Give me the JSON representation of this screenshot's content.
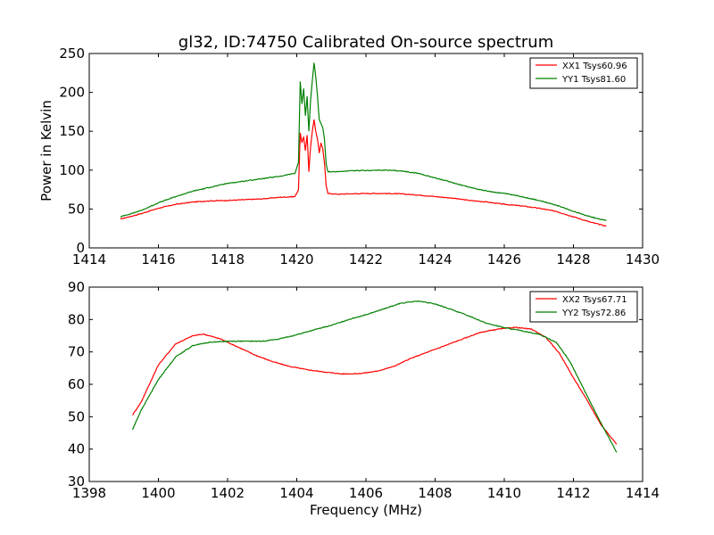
{
  "chart_data": {
    "type": "line",
    "title": "gl32, ID:74750 Calibrated On-source spectrum",
    "panels": [
      {
        "xlabel": "",
        "ylabel": "Power in Kelvin",
        "xlim": [
          1414,
          1430
        ],
        "ylim": [
          0,
          250
        ],
        "xticks": [
          "1414",
          "1416",
          "1418",
          "1420",
          "1422",
          "1424",
          "1426",
          "1428",
          "1430"
        ],
        "yticks": [
          "0",
          "50",
          "100",
          "150",
          "200",
          "250"
        ],
        "legend_position": "top-right",
        "series": [
          {
            "name": "XX1 Tsys60.96",
            "color": "#ff0000",
            "points": [
              [
                1414.9,
                37
              ],
              [
                1415.5,
                44
              ],
              [
                1416,
                51
              ],
              [
                1416.5,
                56
              ],
              [
                1417,
                59
              ],
              [
                1417.5,
                60.5
              ],
              [
                1418,
                61
              ],
              [
                1418.5,
                62
              ],
              [
                1419,
                63
              ],
              [
                1419.5,
                65
              ],
              [
                1419.95,
                66
              ],
              [
                1420.05,
                75
              ],
              [
                1420.1,
                148
              ],
              [
                1420.15,
                135
              ],
              [
                1420.2,
                143
              ],
              [
                1420.25,
                125
              ],
              [
                1420.3,
                145
              ],
              [
                1420.35,
                98
              ],
              [
                1420.4,
                130
              ],
              [
                1420.45,
                150
              ],
              [
                1420.5,
                165
              ],
              [
                1420.55,
                150
              ],
              [
                1420.6,
                140
              ],
              [
                1420.65,
                122
              ],
              [
                1420.7,
                135
              ],
              [
                1420.75,
                128
              ],
              [
                1420.8,
                110
              ],
              [
                1420.85,
                80
              ],
              [
                1420.9,
                70
              ],
              [
                1421.2,
                69
              ],
              [
                1421.5,
                69.5
              ],
              [
                1422,
                70
              ],
              [
                1422.5,
                70
              ],
              [
                1423,
                69.5
              ],
              [
                1423.5,
                68
              ],
              [
                1424,
                66
              ],
              [
                1424.5,
                64
              ],
              [
                1425,
                61
              ],
              [
                1425.5,
                59
              ],
              [
                1426,
                56
              ],
              [
                1426.5,
                54
              ],
              [
                1427,
                51
              ],
              [
                1427.5,
                47
              ],
              [
                1428,
                40
              ],
              [
                1428.5,
                33
              ],
              [
                1428.95,
                28
              ]
            ]
          },
          {
            "name": "YY1 Tsys81.60",
            "color": "#008000",
            "points": [
              [
                1414.9,
                40
              ],
              [
                1415.5,
                48
              ],
              [
                1416,
                58
              ],
              [
                1416.5,
                66
              ],
              [
                1417,
                73
              ],
              [
                1417.5,
                78
              ],
              [
                1418,
                83
              ],
              [
                1418.5,
                86
              ],
              [
                1419,
                89
              ],
              [
                1419.5,
                92
              ],
              [
                1419.95,
                96
              ],
              [
                1420.05,
                110
              ],
              [
                1420.1,
                214
              ],
              [
                1420.15,
                185
              ],
              [
                1420.2,
                205
              ],
              [
                1420.25,
                170
              ],
              [
                1420.3,
                195
              ],
              [
                1420.35,
                150
              ],
              [
                1420.4,
                190
              ],
              [
                1420.45,
                215
              ],
              [
                1420.5,
                238
              ],
              [
                1420.55,
                220
              ],
              [
                1420.6,
                195
              ],
              [
                1420.65,
                165
              ],
              [
                1420.7,
                160
              ],
              [
                1420.75,
                155
              ],
              [
                1420.8,
                140
              ],
              [
                1420.85,
                108
              ],
              [
                1420.9,
                98
              ],
              [
                1421.2,
                98
              ],
              [
                1421.5,
                99
              ],
              [
                1422,
                99.5
              ],
              [
                1422.5,
                100
              ],
              [
                1423,
                99
              ],
              [
                1423.5,
                96
              ],
              [
                1424,
                90
              ],
              [
                1424.5,
                84
              ],
              [
                1425,
                78
              ],
              [
                1425.5,
                73
              ],
              [
                1426,
                70
              ],
              [
                1426.5,
                66
              ],
              [
                1427,
                61
              ],
              [
                1427.5,
                55
              ],
              [
                1428,
                47
              ],
              [
                1428.5,
                40
              ],
              [
                1428.95,
                35
              ]
            ]
          }
        ]
      },
      {
        "xlabel": "Frequency (MHz)",
        "ylabel": "",
        "xlim": [
          1398,
          1414
        ],
        "ylim": [
          30,
          90
        ],
        "xticks": [
          "1398",
          "1400",
          "1402",
          "1404",
          "1406",
          "1408",
          "1410",
          "1412",
          "1414"
        ],
        "yticks": [
          "30",
          "40",
          "50",
          "60",
          "70",
          "80",
          "90"
        ],
        "legend_position": "top-right",
        "series": [
          {
            "name": "XX2 Tsys67.71",
            "color": "#ff0000",
            "points": [
              [
                1399.25,
                50.5
              ],
              [
                1399.5,
                54.5
              ],
              [
                1400,
                66
              ],
              [
                1400.5,
                72.5
              ],
              [
                1401,
                75
              ],
              [
                1401.3,
                75.5
              ],
              [
                1401.8,
                74
              ],
              [
                1402.3,
                71.5
              ],
              [
                1402.8,
                69
              ],
              [
                1403.3,
                67
              ],
              [
                1403.8,
                65.5
              ],
              [
                1404.3,
                64.5
              ],
              [
                1404.8,
                63.8
              ],
              [
                1405.3,
                63.2
              ],
              [
                1405.8,
                63.3
              ],
              [
                1406.3,
                64
              ],
              [
                1406.8,
                65.5
              ],
              [
                1407.3,
                68
              ],
              [
                1407.8,
                70
              ],
              [
                1408.3,
                72
              ],
              [
                1408.8,
                74
              ],
              [
                1409.3,
                76
              ],
              [
                1409.8,
                77
              ],
              [
                1410.3,
                77.6
              ],
              [
                1410.8,
                77
              ],
              [
                1411.2,
                74.5
              ],
              [
                1411.6,
                69.5
              ],
              [
                1412,
                62
              ],
              [
                1412.4,
                55
              ],
              [
                1412.8,
                47.5
              ],
              [
                1413.25,
                41.5
              ]
            ]
          },
          {
            "name": "YY2 Tsys72.86",
            "color": "#008000",
            "points": [
              [
                1399.25,
                46
              ],
              [
                1399.5,
                52
              ],
              [
                1400,
                61.5
              ],
              [
                1400.5,
                68.5
              ],
              [
                1401,
                72
              ],
              [
                1401.5,
                73
              ],
              [
                1402,
                73.3
              ],
              [
                1402.5,
                73.3
              ],
              [
                1403,
                73.3
              ],
              [
                1403.5,
                74
              ],
              [
                1404,
                75.3
              ],
              [
                1404.5,
                76.8
              ],
              [
                1405,
                78.2
              ],
              [
                1405.5,
                80
              ],
              [
                1406,
                81.5
              ],
              [
                1406.5,
                83.2
              ],
              [
                1407,
                85
              ],
              [
                1407.5,
                85.7
              ],
              [
                1408,
                84.8
              ],
              [
                1408.5,
                83
              ],
              [
                1409,
                81
              ],
              [
                1409.5,
                78.8
              ],
              [
                1410,
                77.5
              ],
              [
                1410.5,
                76.5
              ],
              [
                1411,
                75.5
              ],
              [
                1411.5,
                73
              ],
              [
                1411.9,
                67
              ],
              [
                1412.3,
                58.5
              ],
              [
                1412.7,
                50
              ],
              [
                1413.25,
                39
              ]
            ]
          }
        ]
      }
    ]
  }
}
